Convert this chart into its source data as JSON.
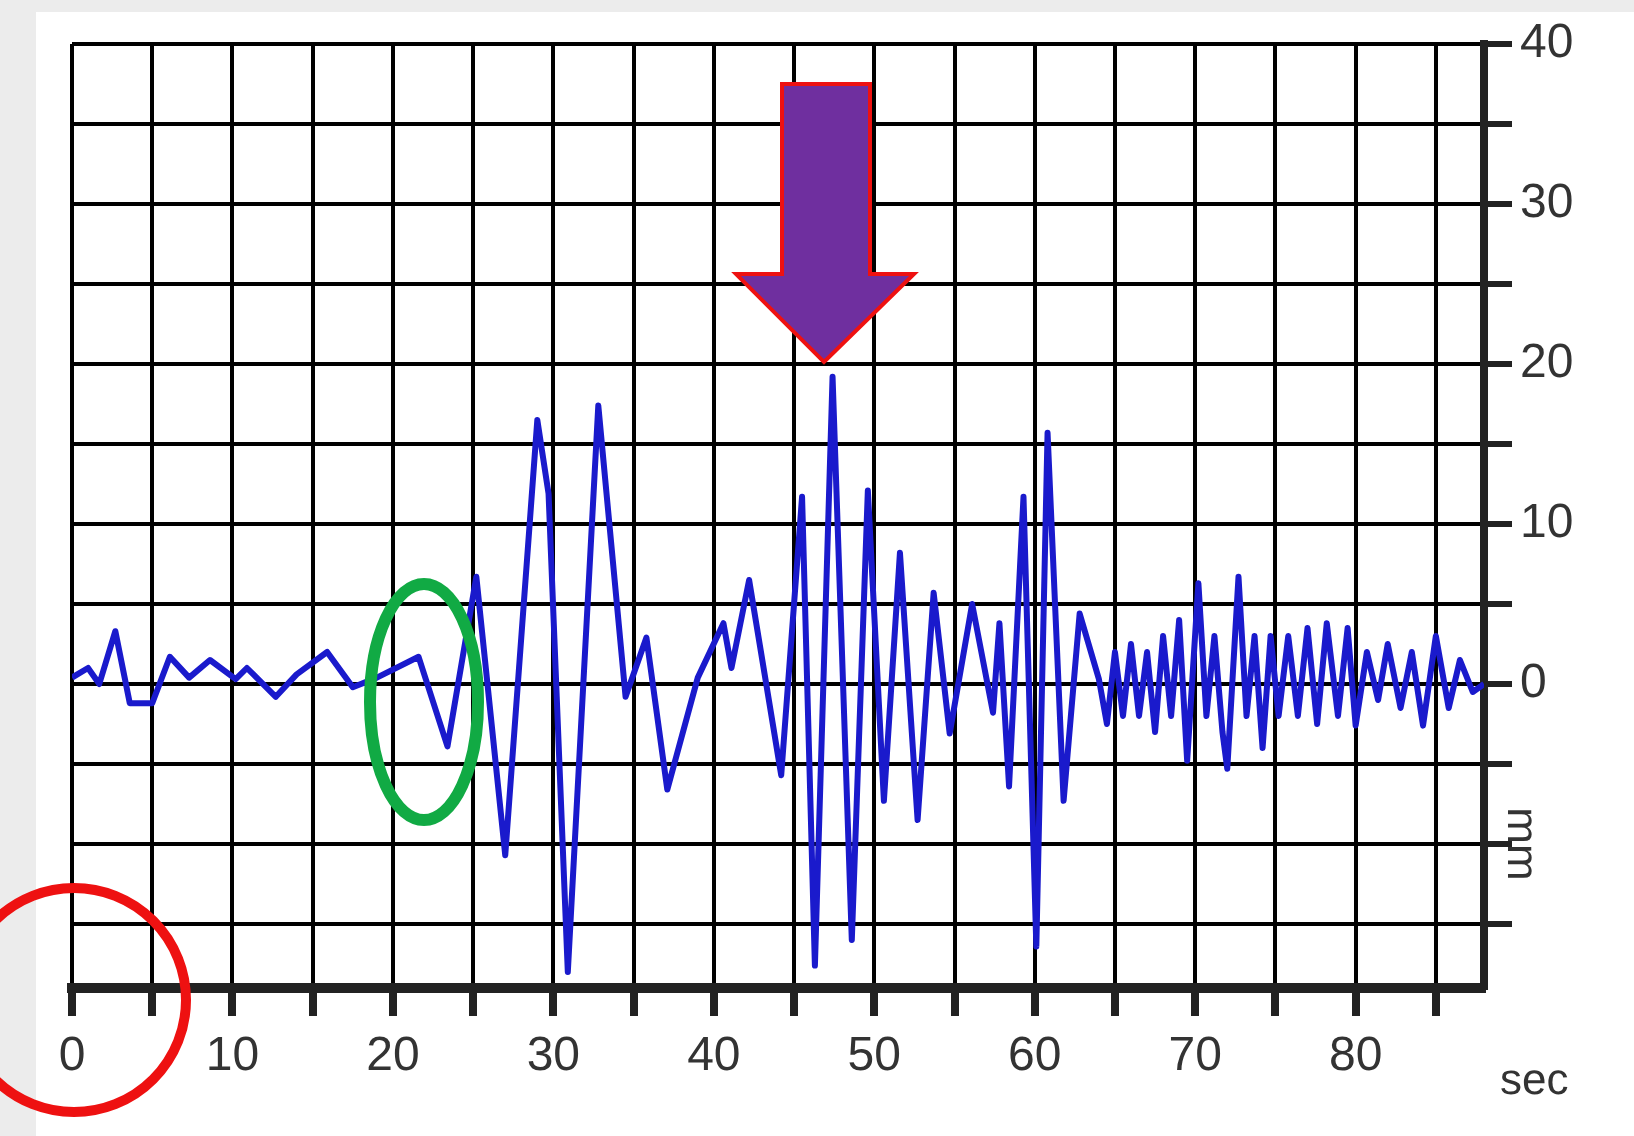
{
  "chart_data": {
    "type": "line",
    "xlabel": "sec",
    "ylabel": "mm",
    "x": [
      0,
      1,
      1.7,
      2.7,
      3.6,
      5,
      6.1,
      7.3,
      8.6,
      10.2,
      10.9,
      12.7,
      14,
      15.9,
      17.5,
      19,
      21.6,
      23.4,
      25.2,
      27,
      29,
      29.7,
      30.9,
      32.8,
      34.5,
      35.8,
      37.1,
      39,
      40.6,
      41.1,
      42.2,
      44.2,
      45.5,
      46.3,
      47.4,
      48.6,
      49.6,
      50.6,
      51.6,
      52.7,
      53.7,
      54.7,
      56.1,
      57.4,
      57.8,
      58.4,
      59.3,
      60.1,
      60.8,
      61.8,
      62.8,
      64,
      64.5,
      65,
      65.5,
      66,
      66.5,
      67,
      67.5,
      68,
      68.5,
      69,
      69.5,
      70.2,
      70.7,
      71.2,
      71.7,
      72,
      72.7,
      73.2,
      73.7,
      74.2,
      74.7,
      75.2,
      75.8,
      76.4,
      77,
      77.6,
      78.2,
      78.9,
      79.5,
      80,
      80.7,
      81.4,
      82,
      82.8,
      83.5,
      84.2,
      85,
      85.8,
      86.5,
      87.3,
      88
    ],
    "series": [
      {
        "color": "#1a1acc",
        "values": [
          0.4,
          1,
          0,
          3.3,
          -1.2,
          -1.2,
          1.7,
          0.4,
          1.5,
          0.3,
          1,
          -0.8,
          0.6,
          2,
          -0.2,
          0.4,
          1.7,
          -3.9,
          6.7,
          -10.7,
          16.5,
          11.9,
          -18,
          17.4,
          -0.8,
          2.9,
          -6.6,
          0.4,
          3.8,
          1,
          6.5,
          -5.7,
          11.7,
          -17.6,
          19.2,
          -16,
          12.1,
          -7.3,
          8.2,
          -8.5,
          5.7,
          -3.1,
          5,
          -1.8,
          3.8,
          -6.4,
          11.7,
          -16.4,
          15.7,
          -7.3,
          4.4,
          0.3,
          -2.5,
          2,
          -2,
          2.5,
          -2,
          2,
          -3,
          3,
          -2,
          4,
          -4.8,
          6.3,
          -2,
          3,
          -3,
          -5.3,
          6.7,
          -2,
          3,
          -4,
          3,
          -2,
          3,
          -2,
          3.5,
          -2.5,
          3.8,
          -2,
          3.5,
          -2.6,
          2,
          -1,
          2.5,
          -1.5,
          2,
          -2.6,
          3,
          -1.5,
          1.5,
          -0.5,
          0
        ]
      }
    ],
    "xlim": [
      0,
      88
    ],
    "xticks": [
      0,
      {
        "value": 5,
        "label": null
      },
      10,
      {
        "value": 15,
        "label": null
      },
      20,
      {
        "value": 25,
        "label": null
      },
      30,
      {
        "value": 35,
        "label": null
      },
      40,
      {
        "value": 45,
        "label": null
      },
      50,
      {
        "value": 55,
        "label": null
      },
      60,
      {
        "value": 65,
        "label": null
      },
      70,
      {
        "value": 75,
        "label": null
      },
      80,
      {
        "value": 85,
        "label": null
      }
    ],
    "ylim": [
      -19,
      40
    ],
    "yticks": [
      {
        "value": -15,
        "label": null
      },
      {
        "value": -10,
        "label": null
      },
      {
        "value": -5,
        "label": null
      },
      0,
      {
        "value": 5,
        "label": null
      },
      10,
      {
        "value": 15,
        "label": null
      },
      20,
      {
        "value": 25,
        "label": null
      },
      30,
      {
        "value": 35,
        "label": null
      },
      40
    ],
    "grid": true
  }
}
